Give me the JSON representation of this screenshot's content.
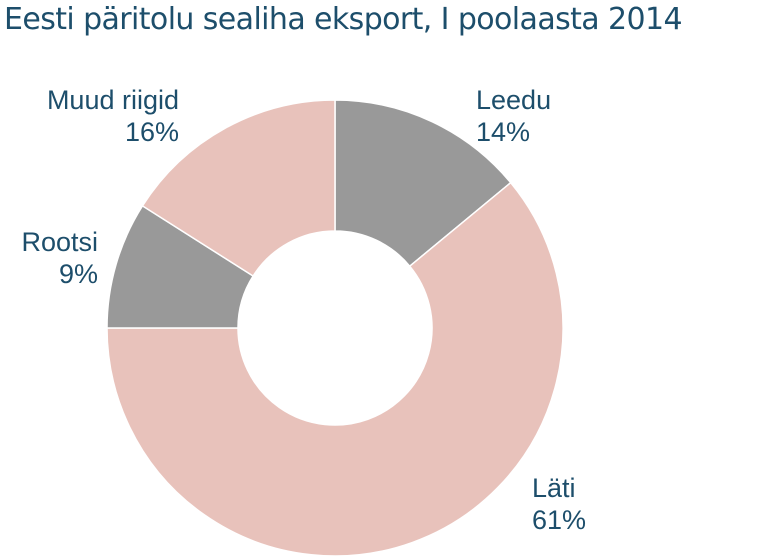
{
  "title": "Eesti päritolu sealiha eksport, I poolaasta 2014",
  "colors": {
    "title": "#1d4e6b",
    "label": "#1d4e6b",
    "slice_gray": "#999999",
    "slice_pink": "#e8c2bb",
    "separator": "#ffffff"
  },
  "chart_data": {
    "type": "pie",
    "variant": "donut",
    "title": "Eesti päritolu sealiha eksport, I poolaasta 2014",
    "slices": [
      {
        "name": "Leedu",
        "value": 14,
        "label": "14%",
        "color": "#999999"
      },
      {
        "name": "Läti",
        "value": 61,
        "label": "61%",
        "color": "#e8c2bb"
      },
      {
        "name": "Rootsi",
        "value": 9,
        "label": "9%",
        "color": "#999999"
      },
      {
        "name": "Muud riigid",
        "value": 16,
        "label": "16%",
        "color": "#e8c2bb"
      }
    ],
    "start_angle": "12 o'clock",
    "direction": "clockwise",
    "legend": "none"
  }
}
